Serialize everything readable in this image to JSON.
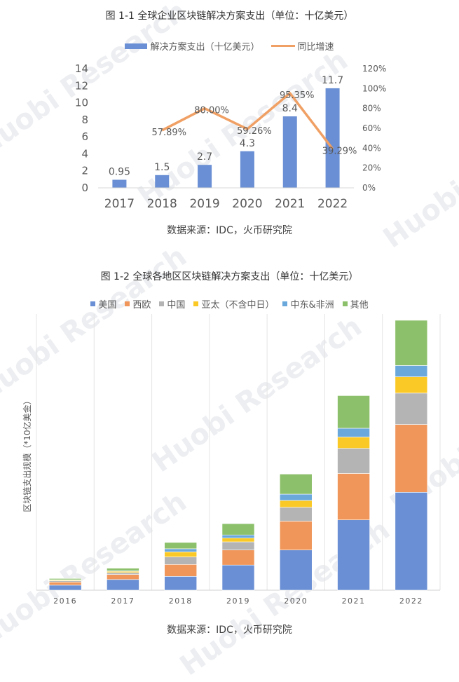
{
  "chart1": {
    "caption": "图 1-1  全球企业区块链解决方案支出（单位：十亿美元）",
    "source": "数据来源：IDC，火币研究院",
    "legend": [
      {
        "name": "解决方案支出（十亿美元）",
        "color": "#6a8fd4"
      },
      {
        "name": "同比增速",
        "color": "#f0a064"
      }
    ]
  },
  "chart2": {
    "caption": "图 1-2  全球各地区区块链解决方案支出（单位：十亿美元）",
    "source": "数据来源：IDC，火币研究院",
    "ylabel": "区块链支出规模（*10亿美金）"
  },
  "watermark": "Huobi Research",
  "chart_data": [
    {
      "type": "bar",
      "categories": [
        "2017",
        "2018",
        "2019",
        "2020",
        "2021",
        "2022"
      ],
      "series": [
        {
          "name": "解决方案支出（十亿美元）",
          "values": [
            0.95,
            1.5,
            2.7,
            4.3,
            8.4,
            11.7
          ],
          "color": "#6a8fd4"
        },
        {
          "name": "同比增速",
          "type": "line",
          "axis": "right",
          "values": [
            null,
            57.89,
            80.0,
            59.26,
            95.35,
            39.29
          ],
          "labels": [
            "",
            "57.89%",
            "80.00%",
            "59.26%",
            "95.35%",
            "39.29%"
          ],
          "color": "#f0a064"
        }
      ],
      "data_labels": [
        "0.95",
        "1.5",
        "2.7",
        "4.3",
        "8.4",
        "11.7"
      ],
      "ylim": [
        0,
        14
      ],
      "yticks": [
        "0",
        "2",
        "4",
        "6",
        "8",
        "10",
        "12",
        "14"
      ],
      "y2lim": [
        0,
        120
      ],
      "y2ticks": [
        "0%",
        "20%",
        "40%",
        "60%",
        "80%",
        "100%",
        "120%"
      ],
      "grid": false,
      "legend": "top"
    },
    {
      "type": "bar",
      "stacked": true,
      "categories": [
        "2016",
        "2017",
        "2018",
        "2019",
        "2020",
        "2021",
        "2022"
      ],
      "series": [
        {
          "name": "美国",
          "color": "#6a8fd4",
          "values": [
            0.4,
            0.85,
            1.1,
            2.0,
            3.2,
            5.6,
            7.8
          ]
        },
        {
          "name": "西欧",
          "color": "#f0965a",
          "values": [
            0.25,
            0.4,
            0.95,
            1.2,
            2.3,
            3.7,
            5.4
          ]
        },
        {
          "name": "中国",
          "color": "#b4b4b4",
          "values": [
            0.1,
            0.15,
            0.6,
            0.65,
            1.1,
            2.0,
            2.5
          ]
        },
        {
          "name": "亚太（不含中日）",
          "color": "#fbc926",
          "values": [
            0.05,
            0.1,
            0.4,
            0.3,
            0.55,
            0.9,
            1.3
          ]
        },
        {
          "name": "中东&非洲",
          "color": "#6aa8dc",
          "values": [
            0.03,
            0.05,
            0.25,
            0.25,
            0.5,
            0.7,
            0.9
          ]
        },
        {
          "name": "其他",
          "color": "#8cc06a",
          "values": [
            0.1,
            0.2,
            0.5,
            0.9,
            1.6,
            2.6,
            3.6
          ]
        }
      ],
      "ylim": [
        0,
        22
      ],
      "ylabel": "区块链支出规模（*10亿美金）",
      "grid": "vertical",
      "legend": "top"
    }
  ]
}
